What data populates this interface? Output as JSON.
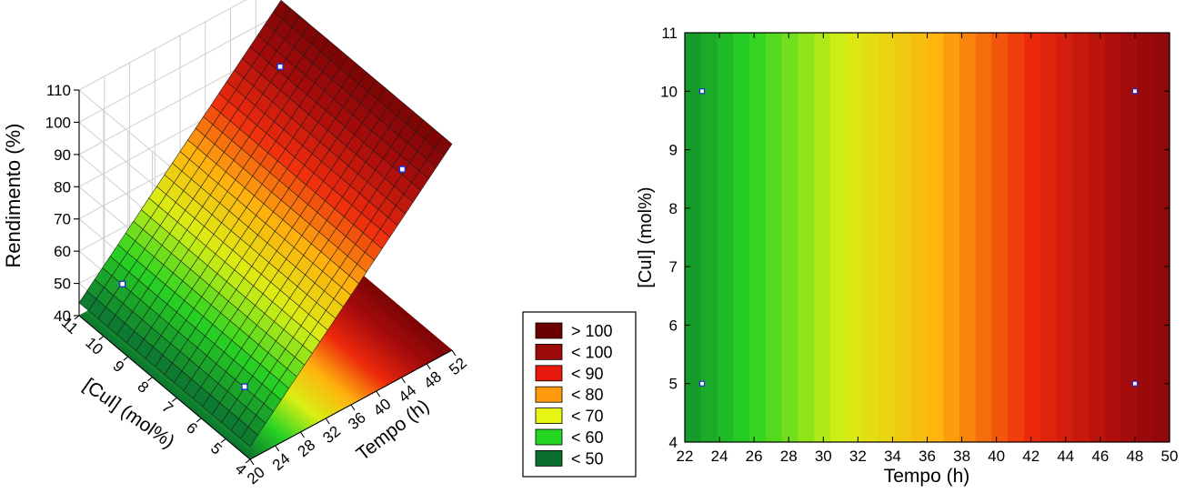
{
  "chart_data": [
    {
      "type": "surface",
      "zlabel": "Rendimento (%)",
      "ylabel": "[CuI] (mol%)",
      "xlabel": "Tempo (h)",
      "x_ticks": [
        "20",
        "24",
        "28",
        "32",
        "36",
        "40",
        "44",
        "48",
        "52"
      ],
      "y_ticks": [
        "4",
        "5",
        "6",
        "7",
        "8",
        "9",
        "10",
        "11"
      ],
      "z_ticks": [
        "40",
        "50",
        "60",
        "70",
        "80",
        "90",
        "100",
        "110"
      ],
      "xlim": [
        20,
        52
      ],
      "ylim": [
        4,
        11
      ],
      "zlim": [
        40,
        110
      ],
      "surface": {
        "z_at_x20": 44,
        "z_at_x52": 104,
        "depends_on": "Tempo (h)"
      },
      "points": [
        {
          "x": 23,
          "y": 5,
          "z": 53
        },
        {
          "x": 23,
          "y": 10,
          "z": 53
        },
        {
          "x": 48,
          "y": 5,
          "z": 94
        },
        {
          "x": 48,
          "y": 10,
          "z": 94
        }
      ],
      "legend": [
        {
          "label": "> 100",
          "color": "#6b0000"
        },
        {
          "label": "< 100",
          "color": "#9c0a0a"
        },
        {
          "label": "< 90",
          "color": "#e8180c"
        },
        {
          "label": "< 80",
          "color": "#ff9a0e"
        },
        {
          "label": "< 70",
          "color": "#e6f512"
        },
        {
          "label": "< 60",
          "color": "#25d622"
        },
        {
          "label": "< 50",
          "color": "#0a6e2e"
        }
      ]
    },
    {
      "type": "contour",
      "xlabel": "Tempo (h)",
      "ylabel": "[CuI] (mol%)",
      "x_ticks": [
        "22",
        "24",
        "26",
        "28",
        "30",
        "32",
        "34",
        "36",
        "38",
        "40",
        "42",
        "44",
        "46",
        "48",
        "50"
      ],
      "y_ticks": [
        "4",
        "5",
        "6",
        "7",
        "8",
        "9",
        "10",
        "11"
      ],
      "xlim": [
        22,
        50
      ],
      "ylim": [
        4,
        11
      ],
      "points": [
        {
          "x": 23,
          "y": 5
        },
        {
          "x": 23,
          "y": 10
        },
        {
          "x": 48,
          "y": 5
        },
        {
          "x": 48,
          "y": 10
        }
      ]
    }
  ]
}
